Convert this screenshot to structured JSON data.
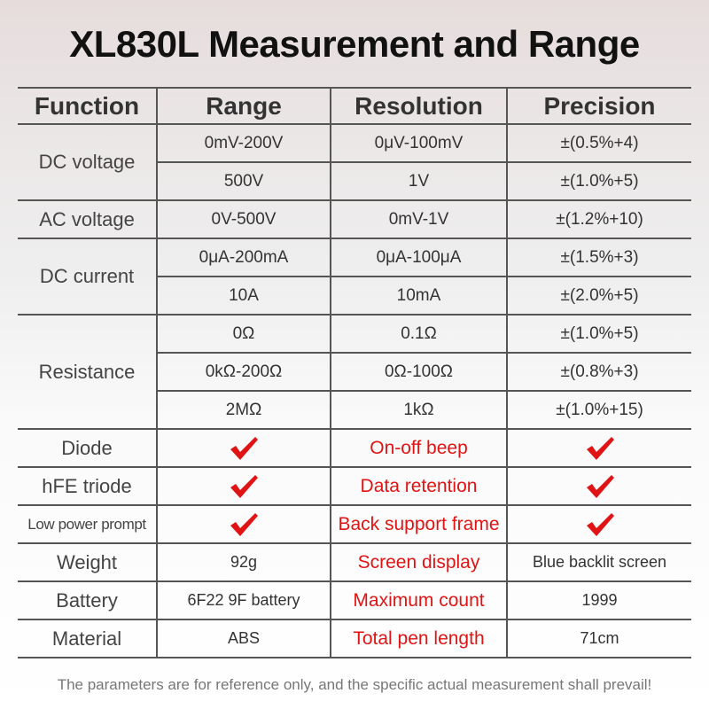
{
  "title": "XL830L Measurement and Range",
  "table": {
    "header": [
      "Function",
      "Range",
      "Resolution",
      "Precision"
    ],
    "groups": [
      {
        "function": "DC voltage",
        "rows": [
          [
            "0mV-200V",
            "0μV-100mV",
            "±(0.5%+4)"
          ],
          [
            "500V",
            "1V",
            "±(1.0%+5)"
          ]
        ]
      },
      {
        "function": "AC voltage",
        "rows": [
          [
            "0V-500V",
            "0mV-1V",
            "±(1.2%+10)"
          ]
        ]
      },
      {
        "function": "DC current",
        "rows": [
          [
            "0μA-200mA",
            "0μA-100μA",
            "±(1.5%+3)"
          ],
          [
            "10A",
            "10mA",
            "±(2.0%+5)"
          ]
        ]
      },
      {
        "function": "Resistance",
        "rows": [
          [
            "0Ω",
            "0.1Ω",
            "±(1.0%+5)"
          ],
          [
            "0kΩ-200Ω",
            "0Ω-100Ω",
            "±(0.8%+3)"
          ],
          [
            "2MΩ",
            "1kΩ",
            "±(1.0%+15)"
          ]
        ]
      }
    ],
    "features": [
      {
        "function": "Diode",
        "feature": "On-off beep"
      },
      {
        "function": "hFE triode",
        "feature": "Data retention"
      },
      {
        "function": "Low power prompt",
        "feature": "Back support frame"
      }
    ],
    "specs": [
      {
        "function": "Weight",
        "value": "92g",
        "property": "Screen display",
        "property_value": "Blue backlit screen"
      },
      {
        "function": "Battery",
        "value": "6F22 9F battery",
        "property": "Maximum count",
        "property_value": "1999"
      },
      {
        "function": "Material",
        "value": "ABS",
        "property": "Total pen length",
        "property_value": "71cm"
      }
    ]
  },
  "note": "The parameters are for reference only, and the specific actual measurement shall prevail!"
}
